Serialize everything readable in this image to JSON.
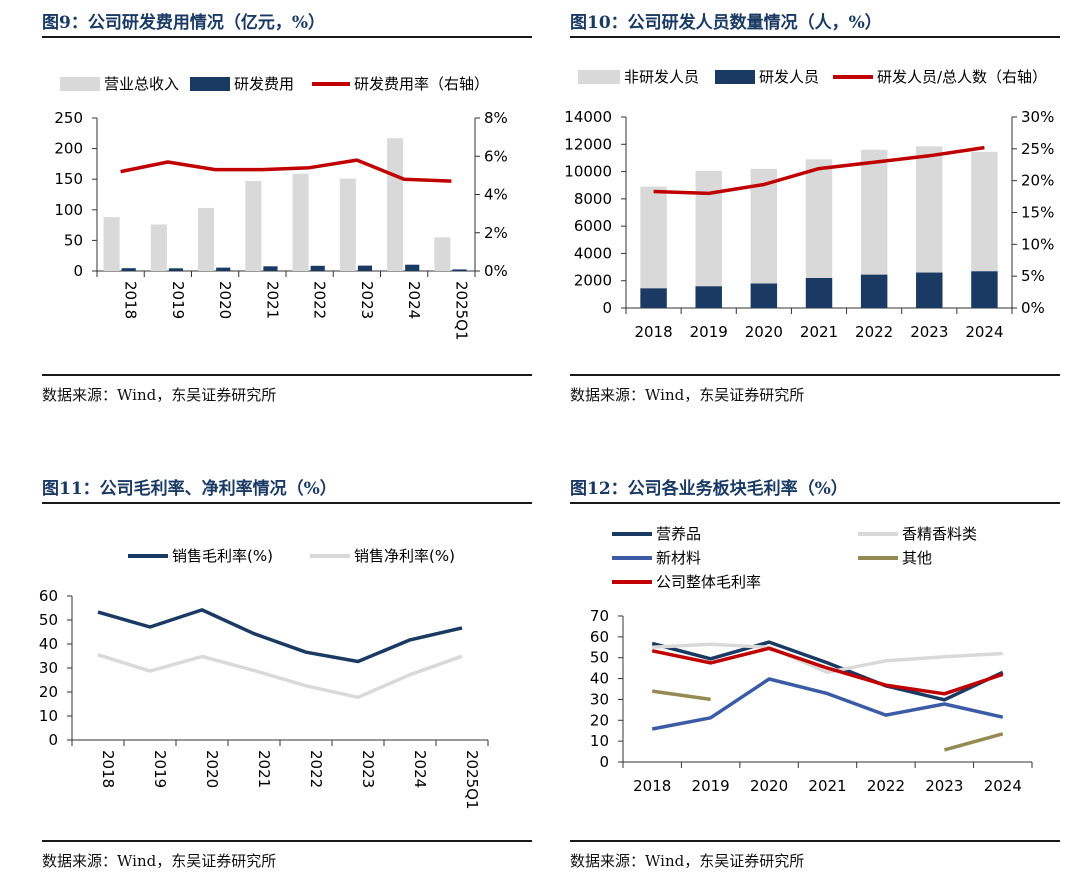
{
  "panels": [
    {
      "title": "图9：公司研发费用情况（亿元，%）",
      "source": "数据来源：Wind，东吴证券研究所"
    },
    {
      "title": "图10：公司研发人员数量情况（人，%）",
      "source": "数据来源：Wind，东吴证券研究所"
    },
    {
      "title": "图11：公司毛利率、净利率情况（%）",
      "source": "数据来源：Wind，东吴证券研究所"
    },
    {
      "title": "图12：公司各业务板块毛利率（%）",
      "source": "数据来源：Wind，东吴证券研究所"
    }
  ],
  "chart_data": [
    {
      "type": "bar",
      "title": "图9：公司研发费用情况（亿元，%）",
      "categories": [
        "2018",
        "2019",
        "2020",
        "2021",
        "2022",
        "2023",
        "2024",
        "2025Q1"
      ],
      "series": [
        {
          "name": "营业总收入",
          "kind": "bar",
          "axis": "left",
          "color": "#d9d9d9",
          "values": [
            88,
            76,
            103,
            147,
            159,
            151,
            217,
            55
          ]
        },
        {
          "name": "研发费用",
          "kind": "bar",
          "axis": "left",
          "color": "#1a3a63",
          "values": [
            4.6,
            4.4,
            5.5,
            7.7,
            8.5,
            8.8,
            10.3,
            2.6
          ]
        },
        {
          "name": "研发费用率（右轴）",
          "kind": "line",
          "axis": "right",
          "color": "#c00000",
          "values": [
            5.2,
            5.7,
            5.3,
            5.3,
            5.4,
            5.8,
            4.8,
            4.7
          ]
        }
      ],
      "y_left": {
        "min": 0,
        "max": 250,
        "ticks": [
          "0",
          "50",
          "100",
          "150",
          "200",
          "250"
        ]
      },
      "y_right": {
        "min": 0,
        "max": 8,
        "ticks": [
          "0%",
          "2%",
          "4%",
          "6%",
          "8%"
        ]
      },
      "legend": "top"
    },
    {
      "type": "bar",
      "title": "图10：公司研发人员数量情况（人，%）",
      "categories": [
        "2018",
        "2019",
        "2020",
        "2021",
        "2022",
        "2023",
        "2024"
      ],
      "stacked": true,
      "series": [
        {
          "name": "非研发人员",
          "kind": "bar",
          "axis": "left",
          "color": "#d9d9d9",
          "values": [
            7450,
            8450,
            8400,
            8700,
            9150,
            9250,
            8750
          ]
        },
        {
          "name": "研发人员",
          "kind": "bar",
          "axis": "left",
          "color": "#1a3a63",
          "values": [
            1450,
            1600,
            1800,
            2200,
            2450,
            2600,
            2700
          ]
        },
        {
          "name": "研发人员/总人数（右轴）",
          "kind": "line",
          "axis": "right",
          "color": "#c00000",
          "values": [
            18.3,
            18.0,
            19.4,
            21.9,
            22.9,
            23.9,
            25.2
          ]
        }
      ],
      "y_left": {
        "min": 0,
        "max": 14000,
        "ticks": [
          "0",
          "2000",
          "4000",
          "6000",
          "8000",
          "10000",
          "12000",
          "14000"
        ]
      },
      "y_right": {
        "min": 0,
        "max": 30,
        "ticks": [
          "0%",
          "5%",
          "10%",
          "15%",
          "20%",
          "25%",
          "30%"
        ]
      },
      "legend": "top"
    },
    {
      "type": "line",
      "title": "图11：公司毛利率、净利率情况（%）",
      "categories": [
        "2018",
        "2019",
        "2020",
        "2021",
        "2022",
        "2023",
        "2024",
        "2025Q1"
      ],
      "series": [
        {
          "name": "销售毛利率(%)",
          "color": "#1a3a63",
          "values": [
            53.3,
            47.1,
            54.2,
            44.3,
            36.6,
            32.7,
            41.7,
            46.7
          ]
        },
        {
          "name": "销售净利率(%)",
          "color": "#d9d9d9",
          "values": [
            35.5,
            28.7,
            34.8,
            29.0,
            22.6,
            17.8,
            27.2,
            34.9
          ]
        }
      ],
      "y_left": {
        "min": 0,
        "max": 60,
        "ticks": [
          "0",
          "10",
          "20",
          "30",
          "40",
          "50",
          "60"
        ]
      },
      "legend": "top"
    },
    {
      "type": "line",
      "title": "图12：公司各业务板块毛利率（%）",
      "categories": [
        "2018",
        "2019",
        "2020",
        "2021",
        "2022",
        "2023",
        "2024"
      ],
      "series": [
        {
          "name": "营养品",
          "color": "#1a3a63",
          "values": [
            56.8,
            49.5,
            57.5,
            47.5,
            36.5,
            29.8,
            43.0
          ]
        },
        {
          "name": "香精香料类",
          "color": "#d9d9d9",
          "values": [
            55.0,
            56.5,
            55.0,
            43.0,
            48.5,
            50.5,
            52.0
          ]
        },
        {
          "name": "新材料",
          "color": "#3b5ba5",
          "values": [
            15.8,
            21.2,
            39.8,
            32.8,
            22.5,
            27.8,
            21.5
          ]
        },
        {
          "name": "其他",
          "color": "#948a54",
          "values": [
            34.0,
            30.0,
            null,
            null,
            null,
            5.8,
            13.5
          ]
        },
        {
          "name": "公司整体毛利率",
          "color": "#c00000",
          "values": [
            53.3,
            47.5,
            54.5,
            45.0,
            36.8,
            32.7,
            42.0
          ]
        }
      ],
      "y_left": {
        "min": 0,
        "max": 70,
        "ticks": [
          "0",
          "10",
          "20",
          "30",
          "40",
          "50",
          "60",
          "70"
        ]
      },
      "legend": "top"
    }
  ]
}
